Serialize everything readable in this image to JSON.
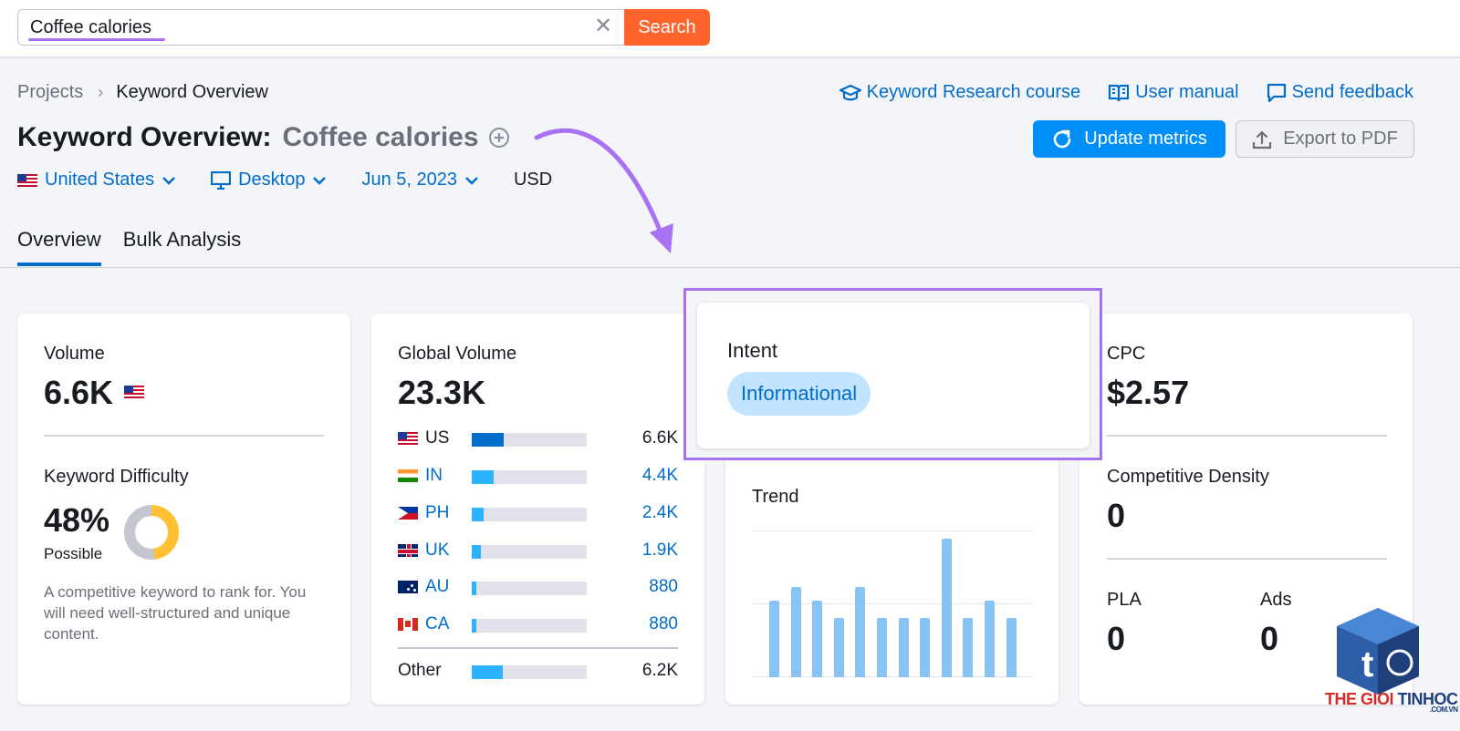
{
  "search": {
    "value": "Coffee calories",
    "clear_icon": "close-icon",
    "button_label": "Search"
  },
  "breadcrumb": {
    "root": "Projects",
    "current": "Keyword Overview"
  },
  "top_links": {
    "course": "Keyword Research course",
    "manual": "User manual",
    "feedback": "Send feedback"
  },
  "title": {
    "prefix": "Keyword Overview:",
    "keyword": "Coffee calories"
  },
  "actions": {
    "update": "Update metrics",
    "export": "Export to PDF"
  },
  "filters": {
    "country": "United States",
    "device": "Desktop",
    "date": "Jun 5, 2023",
    "currency": "USD"
  },
  "tabs": {
    "overview": "Overview",
    "bulk": "Bulk Analysis"
  },
  "volume": {
    "label": "Volume",
    "value": "6.6K"
  },
  "keyword_difficulty": {
    "label": "Keyword Difficulty",
    "value": "48%",
    "level": "Possible",
    "percent": 48,
    "description": "A competitive keyword to rank for. You will need well-structured and unique content."
  },
  "global_volume": {
    "label": "Global Volume",
    "value": "23.3K",
    "rows": [
      {
        "code": "US",
        "value": "6.6K",
        "fraction": 0.28,
        "color": "#006dca",
        "link": false
      },
      {
        "code": "IN",
        "value": "4.4K",
        "fraction": 0.19,
        "color": "#2bb3ff",
        "link": true
      },
      {
        "code": "PH",
        "value": "2.4K",
        "fraction": 0.1,
        "color": "#2bb3ff",
        "link": true
      },
      {
        "code": "UK",
        "value": "1.9K",
        "fraction": 0.08,
        "color": "#2bb3ff",
        "link": true
      },
      {
        "code": "AU",
        "value": "880",
        "fraction": 0.04,
        "color": "#2bb3ff",
        "link": true
      },
      {
        "code": "CA",
        "value": "880",
        "fraction": 0.04,
        "color": "#2bb3ff",
        "link": true
      }
    ],
    "other": {
      "label": "Other",
      "value": "6.2K",
      "fraction": 0.27,
      "color": "#2bb3ff"
    }
  },
  "intent": {
    "label": "Intent",
    "value": "Informational"
  },
  "trend": {
    "label": "Trend",
    "values": [
      0.55,
      0.65,
      0.55,
      0.43,
      0.65,
      0.43,
      0.43,
      0.43,
      1.0,
      0.43,
      0.55,
      0.43
    ]
  },
  "cpc": {
    "label": "CPC",
    "value": "$2.57"
  },
  "competitive_density": {
    "label": "Competitive Density",
    "value": "0"
  },
  "pla": {
    "label": "PLA",
    "value": "0"
  },
  "ads": {
    "label": "Ads",
    "value": "0"
  },
  "watermark": {
    "text_left": "THE GIOI",
    "text_right": "TINHOC",
    "domain": ".COM.VN",
    "letter": "t"
  },
  "colors": {
    "accent": "#006dca",
    "search_button": "#ff642d",
    "update_button": "#008ff8",
    "highlight": "#a972f2",
    "intent_pill": "#c2e4fe",
    "kd_donut": "#ffc032",
    "trend_bar": "#89c2f5"
  }
}
